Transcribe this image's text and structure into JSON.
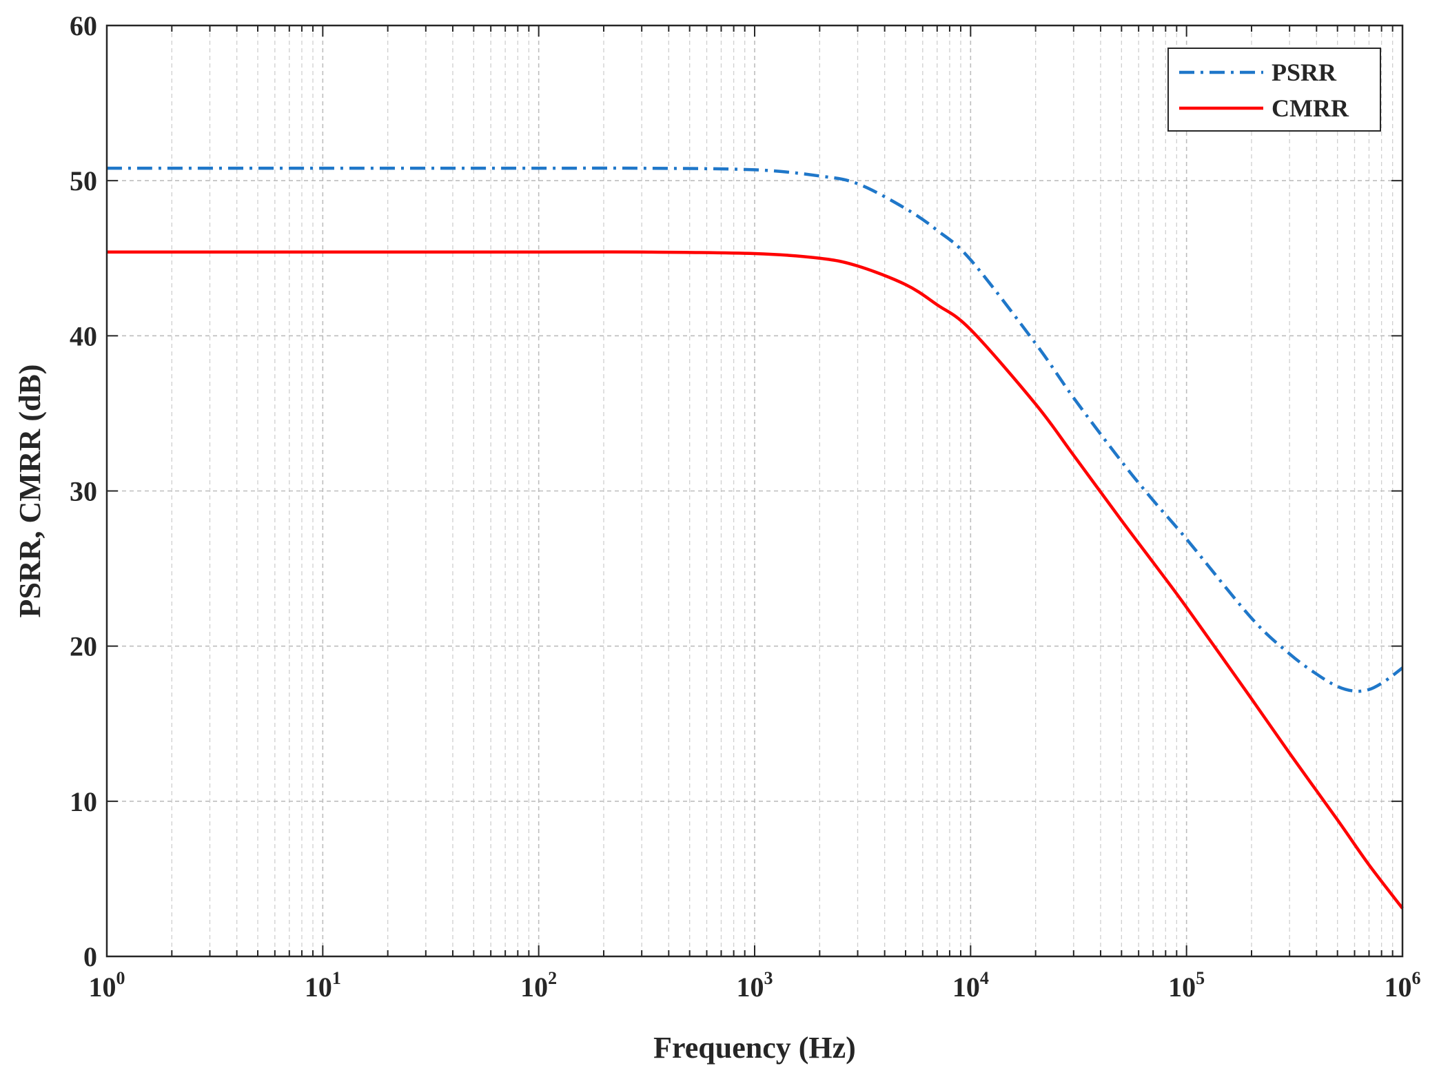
{
  "chart_data": {
    "type": "line",
    "xscale": "log",
    "xlabel": "Frequency (Hz)",
    "ylabel": "PSRR, CMRR (dB)",
    "xlim": [
      1,
      1000000
    ],
    "ylim": [
      0,
      60
    ],
    "grid": true,
    "legend_position": "top-right",
    "xticks": [
      {
        "value": 1,
        "base": "10",
        "exp": "0"
      },
      {
        "value": 10,
        "base": "10",
        "exp": "1"
      },
      {
        "value": 100,
        "base": "10",
        "exp": "2"
      },
      {
        "value": 1000,
        "base": "10",
        "exp": "3"
      },
      {
        "value": 10000,
        "base": "10",
        "exp": "4"
      },
      {
        "value": 100000,
        "base": "10",
        "exp": "5"
      },
      {
        "value": 1000000,
        "base": "10",
        "exp": "6"
      }
    ],
    "yticks": [
      0,
      10,
      20,
      30,
      40,
      50,
      60
    ],
    "series": [
      {
        "name": "PSRR",
        "color": "#1f77c9",
        "style": "dash-dot",
        "x": [
          1,
          10,
          100,
          300,
          1000,
          2000,
          3000,
          5000,
          7000,
          10000,
          20000,
          30000,
          50000,
          70000,
          100000,
          200000,
          300000,
          400000,
          500000,
          600000,
          700000,
          800000,
          900000,
          1000000
        ],
        "y": [
          50.8,
          50.8,
          50.8,
          50.8,
          50.7,
          50.3,
          49.8,
          48.2,
          46.8,
          44.9,
          39.5,
          36.0,
          31.9,
          29.4,
          26.9,
          21.8,
          19.5,
          18.2,
          17.4,
          17.1,
          17.2,
          17.6,
          18.1,
          18.6
        ]
      },
      {
        "name": "CMRR",
        "color": "#ff0000",
        "style": "solid",
        "x": [
          1,
          10,
          100,
          300,
          1000,
          2000,
          3000,
          5000,
          7000,
          10000,
          20000,
          30000,
          50000,
          70000,
          100000,
          200000,
          300000,
          500000,
          700000,
          1000000
        ],
        "y": [
          45.4,
          45.4,
          45.4,
          45.4,
          45.3,
          45.0,
          44.5,
          43.3,
          42.0,
          40.4,
          35.6,
          32.3,
          28.1,
          25.4,
          22.5,
          16.6,
          13.1,
          8.8,
          5.9,
          3.1
        ]
      }
    ]
  }
}
